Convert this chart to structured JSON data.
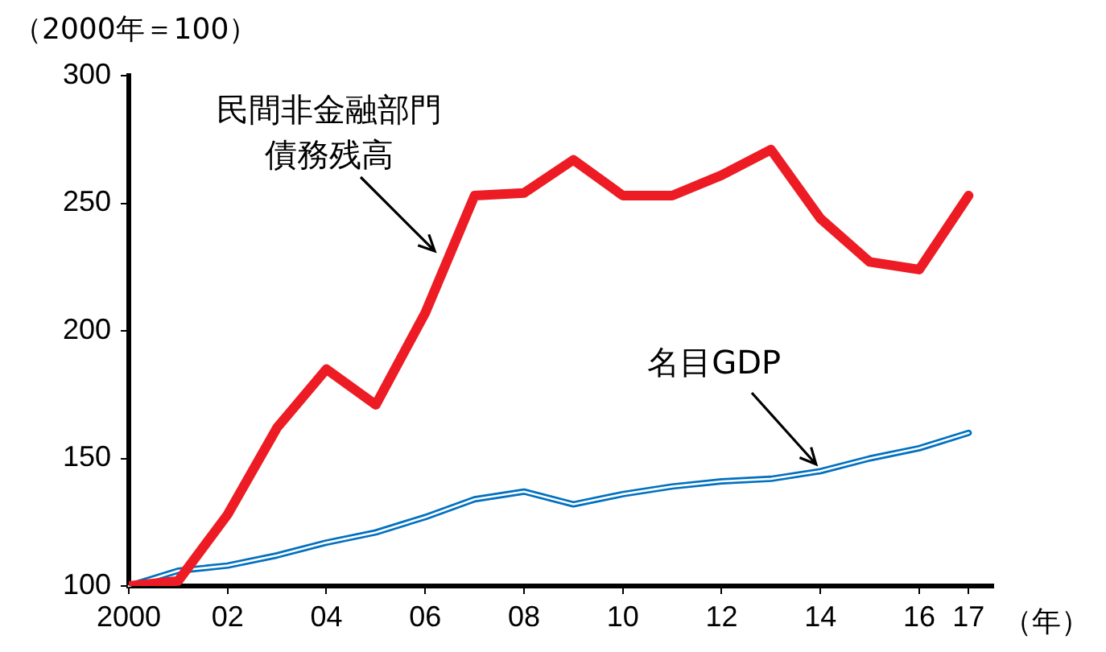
{
  "chart_data": {
    "type": "line",
    "ylabel": "（2000年＝100）",
    "xlabel": "（年）",
    "x": [
      2000,
      2001,
      2002,
      2003,
      2004,
      2005,
      2006,
      2007,
      2008,
      2009,
      2010,
      2011,
      2012,
      2013,
      2014,
      2015,
      2016,
      2017
    ],
    "series": [
      {
        "name": "民間非金融部門債務残高",
        "color": "#ed1c24",
        "values": [
          100,
          102,
          128,
          162,
          185,
          171,
          207,
          253,
          254,
          267,
          253,
          253,
          261,
          271,
          244,
          227,
          224,
          253
        ]
      },
      {
        "name": "名目GDP",
        "color": "#0070c0",
        "values": [
          100,
          106,
          108,
          112,
          117,
          121,
          127,
          134,
          137,
          132,
          136,
          139,
          141,
          142,
          145,
          150,
          154,
          160
        ]
      }
    ],
    "xlim": [
      2000,
      2017.5
    ],
    "xticks": [
      {
        "value": 2000,
        "label": "2000"
      },
      {
        "value": 2002,
        "label": "02"
      },
      {
        "value": 2004,
        "label": "04"
      },
      {
        "value": 2006,
        "label": "06"
      },
      {
        "value": 2008,
        "label": "08"
      },
      {
        "value": 2010,
        "label": "10"
      },
      {
        "value": 2012,
        "label": "12"
      },
      {
        "value": 2014,
        "label": "14"
      },
      {
        "value": 2016,
        "label": "16"
      },
      {
        "value": 2017,
        "label": "17"
      }
    ],
    "ylim": [
      100,
      300
    ],
    "yticks": [
      100,
      150,
      200,
      250,
      300
    ],
    "grid": false,
    "legend": false,
    "marker": "none",
    "line_style": "solid"
  }
}
